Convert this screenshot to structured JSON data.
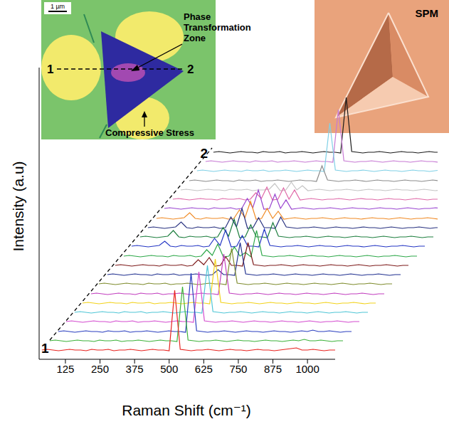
{
  "chart_data": {
    "type": "line",
    "x_label": "Raman Shift (cm⁻¹)",
    "y_label": "Intensity (a.u)",
    "annotations": [
      "1",
      "2"
    ],
    "xlim": [
      30,
      1100
    ],
    "xticks": [
      125,
      250,
      375,
      500,
      625,
      750,
      875,
      1000
    ],
    "ylim": [
      0,
      100
    ],
    "tick_labels": "x",
    "grid": false,
    "x": [
      40,
      60,
      80,
      100,
      120,
      140,
      160,
      180,
      200,
      220,
      240,
      260,
      280,
      300,
      320,
      340,
      360,
      380,
      400,
      420,
      440,
      460,
      480,
      500,
      520,
      540,
      560,
      580,
      600,
      620,
      640,
      660,
      680,
      700,
      720,
      740,
      760,
      780,
      800,
      820,
      840,
      860,
      880,
      900,
      920,
      940,
      960,
      980,
      1000,
      1020,
      1040,
      1060,
      1080,
      1100
    ],
    "series": [
      {
        "color": "#e8231f",
        "values": [
          13,
          14,
          13,
          12,
          13,
          14,
          13,
          13,
          12,
          14,
          13,
          13,
          14,
          12,
          13,
          13,
          14,
          13,
          12,
          13,
          14,
          13,
          13,
          12,
          97,
          14,
          13,
          12,
          13,
          13,
          14,
          13,
          12,
          13,
          14,
          13,
          13,
          12,
          13,
          14,
          13,
          13,
          12,
          13,
          14,
          15,
          16,
          13,
          13,
          14,
          13,
          12,
          13,
          13
        ]
      },
      {
        "color": "#3db23a",
        "values": [
          13,
          14,
          13,
          12,
          13,
          14,
          13,
          13,
          12,
          14,
          13,
          13,
          14,
          12,
          13,
          13,
          14,
          13,
          12,
          13,
          14,
          13,
          13,
          12,
          89,
          14,
          13,
          12,
          13,
          13,
          14,
          13,
          12,
          13,
          14,
          13,
          13,
          12,
          13,
          14,
          13,
          13,
          12,
          13,
          14,
          13,
          15,
          13,
          13,
          14,
          13,
          12,
          13,
          13
        ]
      },
      {
        "color": "#2a3fbf",
        "values": [
          13,
          14,
          13,
          12,
          13,
          14,
          13,
          13,
          12,
          14,
          13,
          13,
          14,
          12,
          13,
          13,
          14,
          13,
          12,
          13,
          14,
          13,
          13,
          12,
          95,
          14,
          13,
          12,
          13,
          13,
          14,
          13,
          12,
          13,
          14,
          13,
          13,
          12,
          13,
          14,
          13,
          13,
          12,
          13,
          14,
          13,
          15,
          13,
          13,
          14,
          13,
          12,
          13,
          13
        ]
      },
      {
        "color": "#d44ccf",
        "values": [
          13,
          14,
          13,
          12,
          13,
          14,
          13,
          13,
          12,
          14,
          13,
          13,
          14,
          12,
          13,
          13,
          14,
          13,
          12,
          13,
          14,
          13,
          13,
          12,
          83,
          14,
          13,
          12,
          13,
          13,
          14,
          13,
          12,
          13,
          14,
          13,
          13,
          12,
          13,
          14,
          13,
          13,
          12,
          13,
          14,
          13,
          12,
          13,
          13,
          14,
          13,
          12,
          13,
          13
        ]
      },
      {
        "color": "#4fc6d6",
        "values": [
          13,
          14,
          13,
          12,
          13,
          14,
          13,
          13,
          12,
          14,
          13,
          13,
          14,
          12,
          13,
          13,
          14,
          13,
          12,
          13,
          14,
          13,
          13,
          12,
          79,
          14,
          13,
          12,
          13,
          13,
          14,
          13,
          12,
          13,
          14,
          13,
          13,
          12,
          13,
          14,
          13,
          13,
          12,
          13,
          14,
          13,
          12,
          13,
          13,
          14,
          13,
          12,
          13,
          13
        ]
      },
      {
        "color": "#f2d21a",
        "values": [
          13,
          14,
          13,
          12,
          13,
          14,
          13,
          13,
          12,
          14,
          13,
          13,
          14,
          12,
          13,
          13,
          14,
          13,
          12,
          13,
          14,
          13,
          13,
          12,
          75,
          14,
          13,
          12,
          13,
          13,
          14,
          13,
          12,
          13,
          14,
          13,
          13,
          12,
          13,
          14,
          13,
          13,
          12,
          13,
          14,
          13,
          12,
          13,
          13,
          14,
          13,
          12,
          13,
          13
        ]
      },
      {
        "color": "#c23fbf",
        "values": [
          13,
          14,
          13,
          12,
          13,
          14,
          13,
          13,
          12,
          14,
          13,
          13,
          14,
          12,
          13,
          13,
          14,
          13,
          12,
          13,
          14,
          13,
          13,
          12,
          69,
          14,
          13,
          12,
          13,
          13,
          14,
          13,
          12,
          13,
          14,
          13,
          13,
          12,
          13,
          14,
          13,
          13,
          12,
          13,
          14,
          13,
          12,
          13,
          13,
          14,
          13,
          12,
          13,
          13
        ]
      },
      {
        "color": "#7f8c2e",
        "values": [
          13,
          14,
          13,
          12,
          13,
          14,
          13,
          13,
          12,
          14,
          13,
          13,
          14,
          12,
          13,
          13,
          14,
          13,
          12,
          13,
          14,
          13,
          13,
          12,
          63,
          14,
          13,
          12,
          13,
          13,
          14,
          13,
          12,
          13,
          14,
          13,
          13,
          12,
          13,
          14,
          13,
          13,
          12,
          13,
          14,
          13,
          12,
          13,
          13,
          14,
          13,
          12,
          13,
          13
        ]
      },
      {
        "color": "#1f2f8f",
        "values": [
          13,
          14,
          13,
          12,
          13,
          14,
          13,
          13,
          12,
          14,
          13,
          13,
          14,
          12,
          13,
          13,
          14,
          13,
          12,
          13,
          20,
          13,
          13,
          12,
          58,
          14,
          13,
          12,
          13,
          13,
          14,
          13,
          12,
          13,
          14,
          13,
          13,
          12,
          13,
          14,
          13,
          13,
          12,
          13,
          14,
          13,
          12,
          13,
          13,
          14,
          13,
          12,
          13,
          13
        ]
      },
      {
        "color": "#7d1a1a",
        "values": [
          13,
          14,
          13,
          12,
          13,
          14,
          13,
          13,
          12,
          14,
          13,
          13,
          14,
          12,
          13,
          21,
          14,
          24,
          12,
          13,
          25,
          13,
          13,
          12,
          45,
          14,
          13,
          12,
          13,
          13,
          14,
          13,
          12,
          13,
          14,
          13,
          13,
          12,
          13,
          14,
          13,
          13,
          12,
          13,
          14,
          13,
          12,
          13,
          13,
          14,
          13,
          12,
          13,
          13
        ]
      },
      {
        "color": "#2ea84a",
        "values": [
          13,
          14,
          13,
          12,
          13,
          14,
          13,
          13,
          12,
          14,
          13,
          13,
          14,
          12,
          13,
          22,
          14,
          30,
          12,
          13,
          26,
          13,
          18,
          12,
          49,
          14,
          13,
          12,
          13,
          13,
          14,
          13,
          12,
          13,
          14,
          13,
          13,
          12,
          13,
          14,
          13,
          13,
          12,
          13,
          14,
          13,
          12,
          13,
          13,
          14,
          13,
          12,
          13,
          13
        ]
      },
      {
        "color": "#2436c4",
        "values": [
          13,
          14,
          13,
          12,
          13,
          14,
          20,
          13,
          12,
          14,
          13,
          13,
          14,
          12,
          13,
          24,
          14,
          36,
          12,
          13,
          28,
          13,
          13,
          12,
          37,
          14,
          13,
          12,
          13,
          13,
          14,
          13,
          12,
          13,
          14,
          13,
          13,
          12,
          13,
          14,
          13,
          13,
          12,
          13,
          14,
          13,
          12,
          13,
          13,
          14,
          13,
          12,
          13,
          13
        ]
      },
      {
        "color": "#1e7f3f",
        "values": [
          13,
          14,
          13,
          12,
          13,
          14,
          22,
          13,
          12,
          14,
          13,
          13,
          14,
          12,
          13,
          26,
          14,
          38,
          12,
          13,
          30,
          13,
          13,
          12,
          33,
          14,
          13,
          12,
          13,
          13,
          14,
          13,
          12,
          13,
          14,
          13,
          13,
          12,
          13,
          14,
          13,
          13,
          12,
          13,
          14,
          13,
          12,
          13,
          13,
          14,
          13,
          12,
          13,
          13
        ]
      },
      {
        "color": "#27307f",
        "values": [
          13,
          14,
          13,
          12,
          13,
          14,
          21,
          13,
          12,
          14,
          13,
          13,
          14,
          12,
          13,
          28,
          14,
          40,
          12,
          13,
          27,
          13,
          13,
          12,
          28,
          14,
          13,
          12,
          13,
          13,
          14,
          13,
          12,
          13,
          14,
          13,
          13,
          12,
          13,
          14,
          13,
          13,
          12,
          13,
          14,
          13,
          12,
          13,
          13,
          14,
          13,
          12,
          13,
          13
        ]
      },
      {
        "color": "#f08a24",
        "values": [
          13,
          14,
          13,
          12,
          13,
          14,
          21,
          13,
          12,
          14,
          13,
          13,
          14,
          12,
          13,
          25,
          14,
          37,
          12,
          13,
          27,
          13,
          23,
          12,
          13,
          14,
          13,
          12,
          13,
          13,
          14,
          13,
          12,
          13,
          14,
          13,
          13,
          12,
          13,
          14,
          13,
          13,
          12,
          13,
          14,
          13,
          12,
          13,
          13,
          14,
          13,
          12,
          13,
          13
        ]
      },
      {
        "color": "#9a46d0",
        "values": [
          13,
          14,
          13,
          12,
          13,
          14,
          13,
          13,
          12,
          14,
          13,
          13,
          14,
          12,
          13,
          27,
          14,
          39,
          12,
          13,
          33,
          13,
          25,
          12,
          13,
          14,
          13,
          12,
          13,
          13,
          14,
          13,
          12,
          13,
          14,
          13,
          13,
          12,
          13,
          14,
          13,
          13,
          12,
          13,
          14,
          13,
          12,
          13,
          13,
          14,
          13,
          12,
          13,
          13
        ]
      },
      {
        "color": "#e06aa8",
        "values": [
          13,
          14,
          13,
          12,
          13,
          14,
          13,
          13,
          12,
          14,
          13,
          13,
          14,
          12,
          13,
          22,
          14,
          30,
          12,
          13,
          29,
          13,
          26,
          12,
          13,
          14,
          13,
          12,
          13,
          13,
          14,
          13,
          12,
          13,
          14,
          13,
          13,
          12,
          13,
          14,
          13,
          13,
          12,
          13,
          14,
          13,
          12,
          13,
          13,
          14,
          13,
          12,
          13,
          13
        ]
      },
      {
        "color": "#c4c4c4",
        "values": [
          13,
          14,
          13,
          12,
          13,
          14,
          13,
          13,
          12,
          14,
          13,
          13,
          14,
          12,
          13,
          13,
          14,
          22,
          12,
          13,
          24,
          13,
          19,
          12,
          13,
          14,
          13,
          12,
          13,
          13,
          14,
          13,
          12,
          13,
          14,
          13,
          13,
          12,
          13,
          14,
          13,
          13,
          12,
          13,
          14,
          13,
          12,
          13,
          13,
          14,
          13,
          12,
          13,
          13
        ]
      },
      {
        "color": "#8c8c8c",
        "values": [
          13,
          14,
          13,
          12,
          13,
          14,
          13,
          13,
          12,
          14,
          13,
          13,
          14,
          12,
          13,
          13,
          14,
          13,
          12,
          13,
          14,
          13,
          13,
          12,
          34,
          14,
          13,
          12,
          13,
          13,
          14,
          13,
          12,
          13,
          14,
          13,
          13,
          12,
          13,
          14,
          13,
          13,
          12,
          13,
          14,
          13,
          12,
          13,
          13,
          14,
          13,
          12,
          13,
          13
        ]
      },
      {
        "color": "#7fd0e6",
        "values": [
          13,
          14,
          13,
          12,
          13,
          14,
          13,
          13,
          12,
          14,
          13,
          13,
          14,
          12,
          13,
          13,
          14,
          13,
          12,
          13,
          14,
          13,
          13,
          12,
          80,
          14,
          13,
          12,
          13,
          13,
          14,
          13,
          12,
          13,
          14,
          13,
          13,
          12,
          13,
          14,
          13,
          13,
          12,
          13,
          14,
          13,
          12,
          13,
          13,
          14,
          13,
          12,
          13,
          13
        ]
      },
      {
        "color": "#c779d4",
        "values": [
          13,
          14,
          13,
          12,
          13,
          14,
          13,
          13,
          12,
          14,
          13,
          13,
          14,
          12,
          13,
          13,
          14,
          13,
          12,
          13,
          14,
          13,
          13,
          12,
          86,
          14,
          13,
          12,
          13,
          13,
          14,
          13,
          12,
          13,
          14,
          13,
          13,
          12,
          13,
          14,
          13,
          13,
          12,
          13,
          14,
          13,
          12,
          13,
          13,
          14,
          13,
          12,
          13,
          13
        ]
      },
      {
        "color": "#1a1a1a",
        "values": [
          13,
          14,
          13,
          12,
          13,
          14,
          13,
          13,
          12,
          14,
          13,
          13,
          14,
          12,
          13,
          13,
          14,
          13,
          12,
          13,
          14,
          13,
          13,
          12,
          90,
          14,
          13,
          12,
          13,
          13,
          14,
          13,
          12,
          13,
          14,
          13,
          13,
          12,
          13,
          14,
          13,
          13,
          12,
          13,
          14,
          13,
          12,
          13,
          13,
          14,
          13,
          12,
          13,
          13
        ]
      }
    ]
  },
  "insets": {
    "micrograph": {
      "scale_bar": "1 µm",
      "markers": [
        "1",
        "2"
      ],
      "labels": [
        "Phase Transformation Zone",
        "Compressive Stress"
      ]
    },
    "spm": {
      "label": "SPM"
    }
  }
}
